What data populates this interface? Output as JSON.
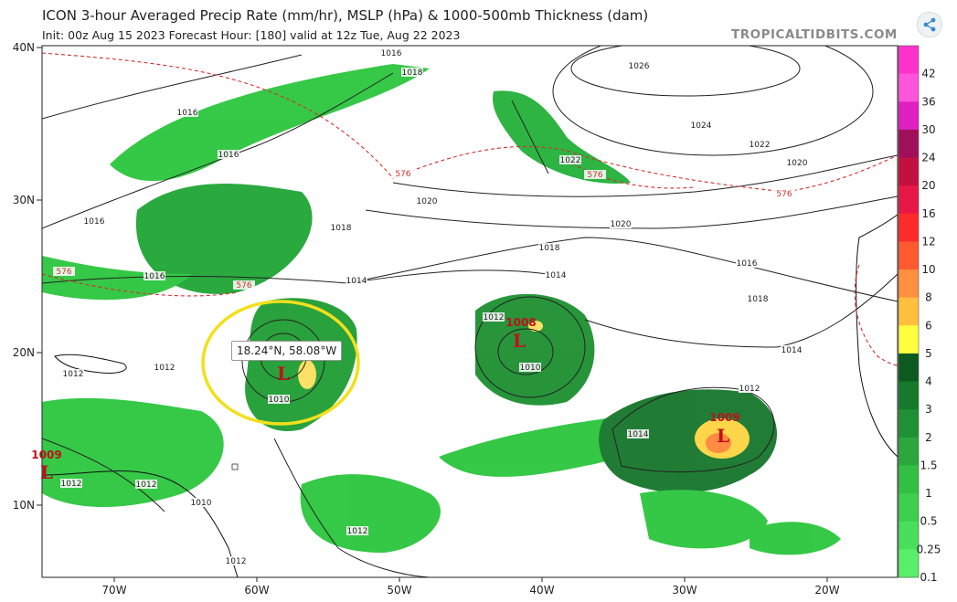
{
  "header": {
    "title": "ICON 3-hour Averaged Precip Rate (mm/hr), MSLP (hPa) & 1000-500mb Thickness (dam)",
    "subtitle": "Init: 00z Aug 15 2023   Forecast Hour: [180]   valid at 12z Tue, Aug 22 2023",
    "brand": "TROPICALTIDBITS.COM"
  },
  "map": {
    "lat_labels": [
      "40N",
      "30N",
      "20N",
      "10N"
    ],
    "lon_labels": [
      "70W",
      "60W",
      "50W",
      "40W",
      "30W",
      "20W"
    ],
    "isobar_labels": [
      "1016",
      "1018",
      "1026",
      "1024",
      "1022",
      "1020",
      "1016",
      "1016",
      "1022",
      "1020",
      "1020",
      "1018",
      "1018",
      "1016",
      "1016",
      "1014",
      "1014",
      "1018",
      "1016",
      "1012",
      "1010",
      "1014",
      "1012",
      "1012",
      "1010",
      "1012",
      "1014",
      "1012",
      "1012",
      "1010",
      "1012",
      "1012"
    ],
    "thickness_labels": [
      "576",
      "576",
      "576",
      "576",
      "576"
    ],
    "lows": [
      {
        "pressure": "1009",
        "symbol": "L"
      },
      {
        "pressure": "1008",
        "symbol": "L"
      },
      {
        "pressure": "1009",
        "symbol": "L"
      },
      {
        "pressure": "",
        "symbol": "L"
      }
    ],
    "highlight_color": "#f2e01c",
    "thickness_color": "#d43030"
  },
  "tooltip": {
    "text": "18.24°N, 58.08°W"
  },
  "colorbar": {
    "labels": [
      "42",
      "36",
      "30",
      "24",
      "20",
      "16",
      "12",
      "10",
      "8",
      "6",
      "5",
      "4",
      "3",
      "2",
      "1.5",
      "1",
      "0.5",
      "0.25",
      "0.1"
    ],
    "colors": [
      "#ff33cc",
      "#ff55dd",
      "#e020c0",
      "#a0105a",
      "#c21040",
      "#e81846",
      "#ff2a2a",
      "#ff5a30",
      "#ff9040",
      "#ffc040",
      "#ffff40",
      "#0c5a20",
      "#157a2a",
      "#1f9034",
      "#2ba83c",
      "#33bf44",
      "#3ccf4c",
      "#48e05a",
      "#5aef6a"
    ]
  }
}
